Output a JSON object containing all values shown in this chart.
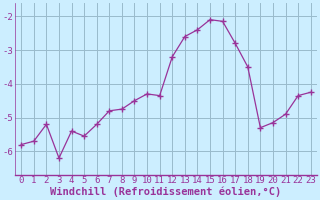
{
  "x": [
    0,
    1,
    2,
    3,
    4,
    5,
    6,
    7,
    8,
    9,
    10,
    11,
    12,
    13,
    14,
    15,
    16,
    17,
    18,
    19,
    20,
    21,
    22,
    23
  ],
  "y": [
    -5.8,
    -5.7,
    -5.2,
    -6.2,
    -5.4,
    -5.55,
    -5.2,
    -4.8,
    -4.75,
    -4.5,
    -4.3,
    -4.35,
    -3.2,
    -2.6,
    -2.4,
    -2.1,
    -2.15,
    -2.8,
    -3.5,
    -5.3,
    -5.15,
    -4.9,
    -4.35,
    -4.25
  ],
  "line_color": "#993399",
  "marker": "+",
  "marker_size": 4,
  "marker_lw": 1.0,
  "bg_color": "#cceeff",
  "grid_color": "#99bbcc",
  "xlabel": "Windchill (Refroidissement éolien,°C)",
  "xlabel_color": "#993399",
  "xlabel_fontsize": 7.5,
  "tick_color": "#993399",
  "tick_fontsize": 6.5,
  "yticks": [
    -6,
    -5,
    -4,
    -3,
    -2
  ],
  "ylim": [
    -6.7,
    -1.6
  ],
  "xlim": [
    -0.5,
    23.5
  ],
  "xtick_labels": [
    "0",
    "1",
    "2",
    "3",
    "4",
    "5",
    "6",
    "7",
    "8",
    "9",
    "10",
    "11",
    "12",
    "13",
    "14",
    "15",
    "16",
    "17",
    "18",
    "19",
    "20",
    "21",
    "22",
    "23"
  ]
}
